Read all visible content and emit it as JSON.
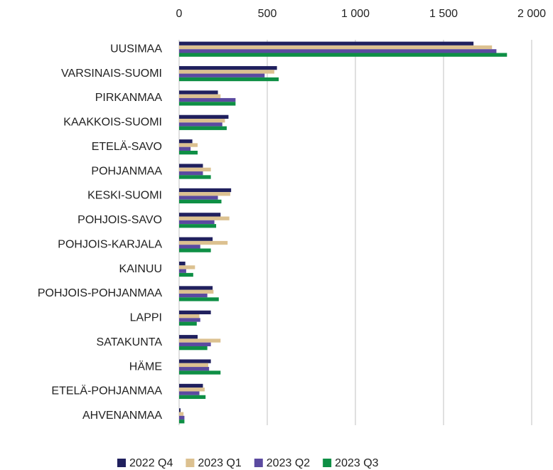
{
  "chart_data": {
    "type": "bar",
    "orientation": "horizontal",
    "categories": [
      "UUSIMAA",
      "VARSINAIS-SUOMI",
      "PIRKANMAA",
      "KAAKKOIS-SUOMI",
      "ETELÄ-SAVO",
      "POHJANMAA",
      "KESKI-SUOMI",
      "POHJOIS-SAVO",
      "POHJOIS-KARJALA",
      "KAINUU",
      "POHJOIS-POHJANMAA",
      "LAPPI",
      "SATAKUNTA",
      "HÄME",
      "ETELÄ-POHJANMAA",
      "AHVENANMAA"
    ],
    "series": [
      {
        "name": "2022 Q4",
        "color": "#20205e",
        "values": [
          1670,
          555,
          220,
          280,
          75,
          135,
          295,
          235,
          190,
          35,
          190,
          180,
          105,
          180,
          135,
          8
        ]
      },
      {
        "name": "2023 Q1",
        "color": "#dcc190",
        "values": [
          1775,
          540,
          235,
          260,
          105,
          180,
          290,
          285,
          275,
          90,
          195,
          115,
          235,
          165,
          145,
          25
        ]
      },
      {
        "name": "2023 Q2",
        "color": "#5b4aa0",
        "values": [
          1800,
          485,
          320,
          245,
          65,
          135,
          220,
          200,
          120,
          40,
          160,
          120,
          180,
          170,
          115,
          30
        ]
      },
      {
        "name": "2023 Q3",
        "color": "#0e8f45",
        "values": [
          1860,
          565,
          320,
          270,
          105,
          180,
          240,
          210,
          180,
          80,
          225,
          100,
          160,
          235,
          150,
          30
        ]
      }
    ],
    "xlim": [
      0,
      2000
    ],
    "xticks": [
      0,
      500,
      {
        "value": 1000,
        "label": "1 000"
      },
      {
        "value": 1500,
        "label": "1 500"
      },
      {
        "value": 2000,
        "label": "2 000"
      }
    ],
    "grid": true,
    "legend": "bottom"
  }
}
